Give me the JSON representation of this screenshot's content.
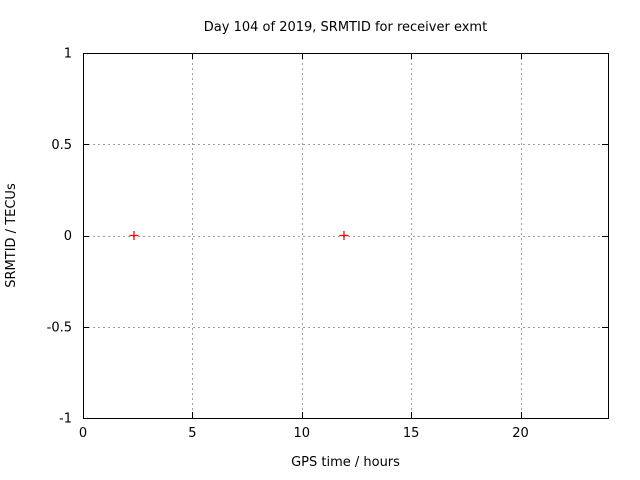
{
  "chart_data": {
    "type": "scatter",
    "title": "Day 104 of 2019, SRMTID for receiver exmt",
    "xlabel": "GPS time / hours",
    "ylabel": "SRMTID / TECUs",
    "xlim": [
      0,
      24
    ],
    "ylim": [
      -1,
      1
    ],
    "xticks": [
      0,
      5,
      10,
      15,
      20
    ],
    "xtick_labels": [
      "0",
      "5",
      "10",
      "15",
      "20"
    ],
    "yticks": [
      -1,
      -0.5,
      0,
      0.5,
      1
    ],
    "ytick_labels": [
      "-1",
      "-0.5",
      "0",
      "0.5",
      "1"
    ],
    "grid": "dotted",
    "legend": "none",
    "marker": "plus",
    "colors": {
      "marker": "#ff0000",
      "grid": "#9e9e9e",
      "axis": "#000000",
      "background": "#ffffff"
    },
    "series": [
      {
        "name": "SRMTID",
        "points": [
          {
            "x": 2.33,
            "y": 0
          },
          {
            "x": 11.93,
            "y": 0
          }
        ]
      }
    ]
  }
}
